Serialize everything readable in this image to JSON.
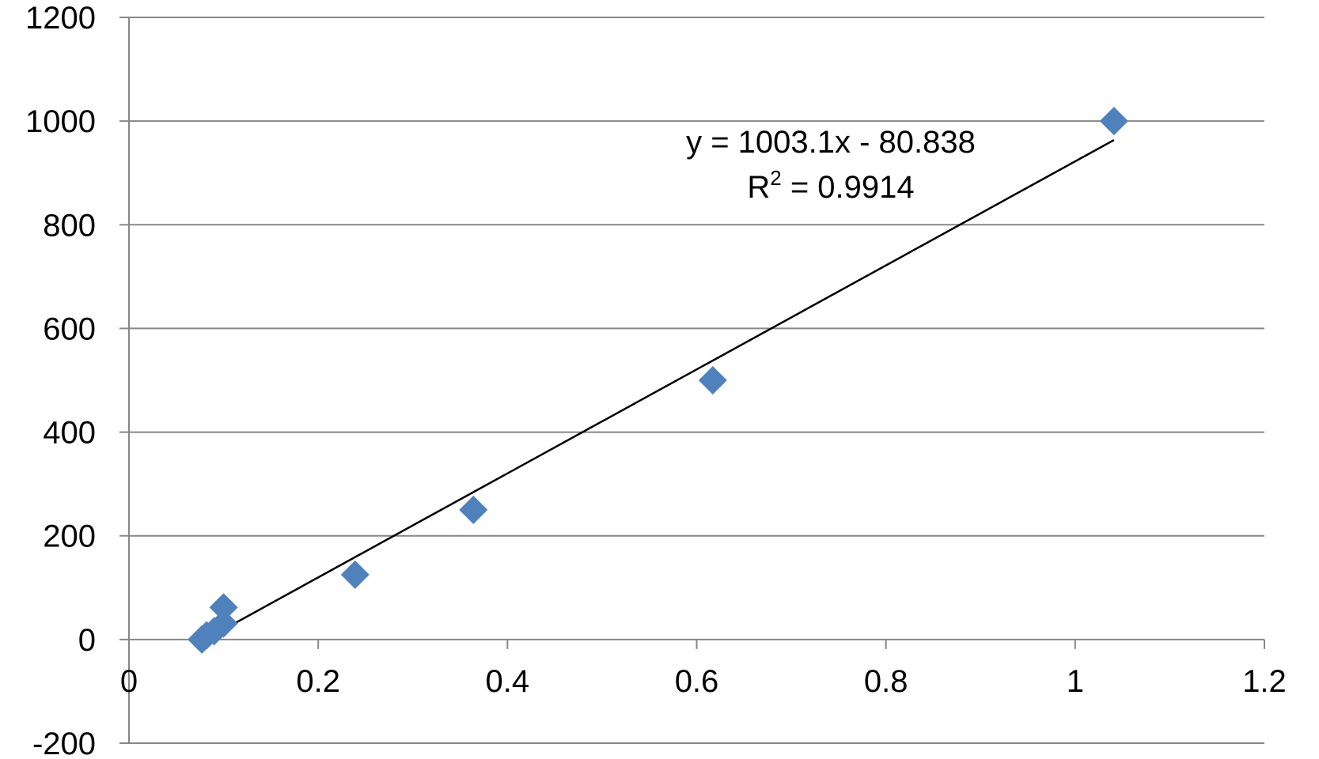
{
  "chart_data": {
    "type": "scatter",
    "xlim": [
      0,
      1.2
    ],
    "ylim": [
      -200,
      1200
    ],
    "x_ticks": [
      0,
      0.2,
      0.4,
      0.6,
      0.8,
      1,
      1.2
    ],
    "y_ticks": [
      -200,
      0,
      200,
      400,
      600,
      800,
      1000,
      1200
    ],
    "x_tick_labels": [
      "0",
      "0.2",
      "0.4",
      "0.6",
      "0.8",
      "1",
      "1.2"
    ],
    "y_tick_labels": [
      "-200",
      "0",
      "200",
      "400",
      "600",
      "800",
      "1000",
      "1200"
    ],
    "grid": "horizontal",
    "legend": "none",
    "series": [
      {
        "marker": "diamond",
        "color": "#4F81BD",
        "points": [
          {
            "x": 0.077,
            "y": 0
          },
          {
            "x": 0.082,
            "y": 8
          },
          {
            "x": 0.09,
            "y": 16
          },
          {
            "x": 0.1,
            "y": 31
          },
          {
            "x": 0.1,
            "y": 62
          },
          {
            "x": 0.239,
            "y": 125
          },
          {
            "x": 0.364,
            "y": 250
          },
          {
            "x": 0.617,
            "y": 500
          },
          {
            "x": 1.041,
            "y": 1000
          }
        ]
      }
    ],
    "trendline": {
      "slope": 1003.1,
      "intercept": -80.838,
      "x_range": [
        0.077,
        1.041
      ],
      "color": "#000000"
    },
    "annotations": {
      "equation": "y = 1003.1x - 80.838",
      "r_squared_prefix": "R",
      "r_squared_sup": "2",
      "r_squared_rest": " = 0.9914"
    }
  }
}
